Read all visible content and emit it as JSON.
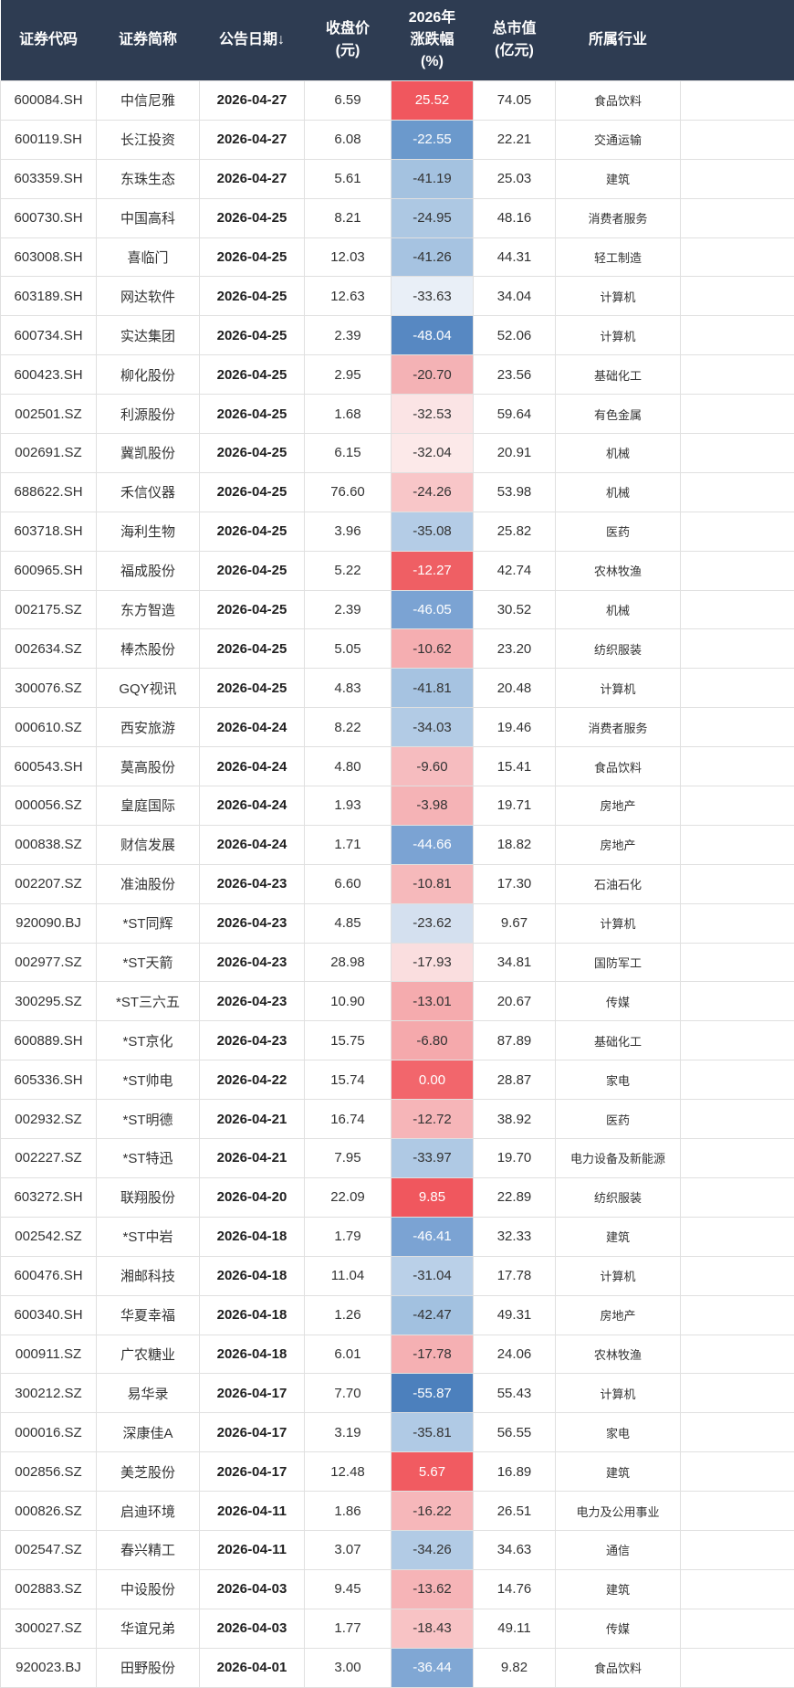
{
  "chart_data": {
    "type": "table",
    "sort": {
      "column": "date",
      "direction": "desc"
    },
    "colors": {
      "header_bg": "#2e3c52",
      "header_fg": "#ffffff",
      "grid": "#e0e0e0",
      "row_bg": "#ffffff",
      "text": "#333333",
      "positive_strong": "#f0575e",
      "negative_strong": "#4c80bd"
    },
    "columns": [
      {
        "key": "code",
        "label": "证券代码",
        "sortable": false
      },
      {
        "key": "name",
        "label": "证券简称",
        "sortable": false
      },
      {
        "key": "date",
        "label": "公告日期",
        "sortable": true,
        "sort_indicator": "↓"
      },
      {
        "key": "close",
        "label": "收盘价\n(元)",
        "sortable": false
      },
      {
        "key": "change",
        "label": "2026年\n涨跌幅\n(%)",
        "sortable": false
      },
      {
        "key": "mcap",
        "label": "总市值\n(亿元)",
        "sortable": false
      },
      {
        "key": "industry",
        "label": "所属行业",
        "sortable": false
      },
      {
        "key": "filler",
        "label": "",
        "sortable": false
      }
    ],
    "rows": [
      {
        "code": "600084.SH",
        "name": "中信尼雅",
        "date": "2026-04-27",
        "close": "6.59",
        "change": "25.52",
        "mcap": "74.05",
        "industry": "食品饮料",
        "change_bg": "#f0575e"
      },
      {
        "code": "600119.SH",
        "name": "长江投资",
        "date": "2026-04-27",
        "close": "6.08",
        "change": "-22.55",
        "mcap": "22.21",
        "industry": "交通运输",
        "change_bg": "#6b99cc"
      },
      {
        "code": "603359.SH",
        "name": "东珠生态",
        "date": "2026-04-27",
        "close": "5.61",
        "change": "-41.19",
        "mcap": "25.03",
        "industry": "建筑",
        "change_bg": "#a4c2e0"
      },
      {
        "code": "600730.SH",
        "name": "中国高科",
        "date": "2026-04-25",
        "close": "8.21",
        "change": "-24.95",
        "mcap": "48.16",
        "industry": "消费者服务",
        "change_bg": "#adc8e3"
      },
      {
        "code": "603008.SH",
        "name": "喜临门",
        "date": "2026-04-25",
        "close": "12.03",
        "change": "-41.26",
        "mcap": "44.31",
        "industry": "轻工制造",
        "change_bg": "#a6c3e1"
      },
      {
        "code": "603189.SH",
        "name": "网达软件",
        "date": "2026-04-25",
        "close": "12.63",
        "change": "-33.63",
        "mcap": "34.04",
        "industry": "计算机",
        "change_bg": "#e9eff7"
      },
      {
        "code": "600734.SH",
        "name": "实达集团",
        "date": "2026-04-25",
        "close": "2.39",
        "change": "-48.04",
        "mcap": "52.06",
        "industry": "计算机",
        "change_bg": "#5788c2"
      },
      {
        "code": "600423.SH",
        "name": "柳化股份",
        "date": "2026-04-25",
        "close": "2.95",
        "change": "-20.70",
        "mcap": "23.56",
        "industry": "基础化工",
        "change_bg": "#f4b2b5"
      },
      {
        "code": "002501.SZ",
        "name": "利源股份",
        "date": "2026-04-25",
        "close": "1.68",
        "change": "-32.53",
        "mcap": "59.64",
        "industry": "有色金属",
        "change_bg": "#fbe4e5"
      },
      {
        "code": "002691.SZ",
        "name": "冀凯股份",
        "date": "2026-04-25",
        "close": "6.15",
        "change": "-32.04",
        "mcap": "20.91",
        "industry": "机械",
        "change_bg": "#fce9e9"
      },
      {
        "code": "688622.SH",
        "name": "禾信仪器",
        "date": "2026-04-25",
        "close": "76.60",
        "change": "-24.26",
        "mcap": "53.98",
        "industry": "机械",
        "change_bg": "#f8c6c8"
      },
      {
        "code": "603718.SH",
        "name": "海利生物",
        "date": "2026-04-25",
        "close": "3.96",
        "change": "-35.08",
        "mcap": "25.82",
        "industry": "医药",
        "change_bg": "#b4cce6"
      },
      {
        "code": "600965.SH",
        "name": "福成股份",
        "date": "2026-04-25",
        "close": "5.22",
        "change": "-12.27",
        "mcap": "42.74",
        "industry": "农林牧渔",
        "change_bg": "#ef5f64"
      },
      {
        "code": "002175.SZ",
        "name": "东方智造",
        "date": "2026-04-25",
        "close": "2.39",
        "change": "-46.05",
        "mcap": "30.52",
        "industry": "机械",
        "change_bg": "#7ba3d3"
      },
      {
        "code": "002634.SZ",
        "name": "棒杰股份",
        "date": "2026-04-25",
        "close": "5.05",
        "change": "-10.62",
        "mcap": "23.20",
        "industry": "纺织服装",
        "change_bg": "#f5aeb1"
      },
      {
        "code": "300076.SZ",
        "name": "GQY视讯",
        "date": "2026-04-25",
        "close": "4.83",
        "change": "-41.81",
        "mcap": "20.48",
        "industry": "计算机",
        "change_bg": "#a6c3e1"
      },
      {
        "code": "000610.SZ",
        "name": "西安旅游",
        "date": "2026-04-24",
        "close": "8.22",
        "change": "-34.03",
        "mcap": "19.46",
        "industry": "消费者服务",
        "change_bg": "#b2cbe5"
      },
      {
        "code": "600543.SH",
        "name": "莫高股份",
        "date": "2026-04-24",
        "close": "4.80",
        "change": "-9.60",
        "mcap": "15.41",
        "industry": "食品饮料",
        "change_bg": "#f6bcbf"
      },
      {
        "code": "000056.SZ",
        "name": "皇庭国际",
        "date": "2026-04-24",
        "close": "1.93",
        "change": "-3.98",
        "mcap": "19.71",
        "industry": "房地产",
        "change_bg": "#f5b3b6"
      },
      {
        "code": "000838.SZ",
        "name": "财信发展",
        "date": "2026-04-24",
        "close": "1.71",
        "change": "-44.66",
        "mcap": "18.82",
        "industry": "房地产",
        "change_bg": "#7ba3d3"
      },
      {
        "code": "002207.SZ",
        "name": "准油股份",
        "date": "2026-04-23",
        "close": "6.60",
        "change": "-10.81",
        "mcap": "17.30",
        "industry": "石油石化",
        "change_bg": "#f6b9bb"
      },
      {
        "code": "920090.BJ",
        "name": "*ST同辉",
        "date": "2026-04-23",
        "close": "4.85",
        "change": "-23.62",
        "mcap": "9.67",
        "industry": "计算机",
        "change_bg": "#d4e0ef"
      },
      {
        "code": "002977.SZ",
        "name": "*ST天箭",
        "date": "2026-04-23",
        "close": "28.98",
        "change": "-17.93",
        "mcap": "34.81",
        "industry": "国防军工",
        "change_bg": "#fadedf"
      },
      {
        "code": "300295.SZ",
        "name": "*ST三六五",
        "date": "2026-04-23",
        "close": "10.90",
        "change": "-13.01",
        "mcap": "20.67",
        "industry": "传媒",
        "change_bg": "#f5abae"
      },
      {
        "code": "600889.SH",
        "name": "*ST京化",
        "date": "2026-04-23",
        "close": "15.75",
        "change": "-6.80",
        "mcap": "87.89",
        "industry": "基础化工",
        "change_bg": "#f5a9ac"
      },
      {
        "code": "605336.SH",
        "name": "*ST帅电",
        "date": "2026-04-22",
        "close": "15.74",
        "change": "0.00",
        "mcap": "28.87",
        "industry": "家电",
        "change_bg": "#f2666c"
      },
      {
        "code": "002932.SZ",
        "name": "*ST明德",
        "date": "2026-04-21",
        "close": "16.74",
        "change": "-12.72",
        "mcap": "38.92",
        "industry": "医药",
        "change_bg": "#f6b5b8"
      },
      {
        "code": "002227.SZ",
        "name": "*ST特迅",
        "date": "2026-04-21",
        "close": "7.95",
        "change": "-33.97",
        "mcap": "19.70",
        "industry": "电力设备及新能源",
        "change_bg": "#afc9e4"
      },
      {
        "code": "603272.SH",
        "name": "联翔股份",
        "date": "2026-04-20",
        "close": "22.09",
        "change": "9.85",
        "mcap": "22.89",
        "industry": "纺织服装",
        "change_bg": "#f0575e"
      },
      {
        "code": "002542.SZ",
        "name": "*ST中岩",
        "date": "2026-04-18",
        "close": "1.79",
        "change": "-46.41",
        "mcap": "32.33",
        "industry": "建筑",
        "change_bg": "#7ba3d3"
      },
      {
        "code": "600476.SH",
        "name": "湘邮科技",
        "date": "2026-04-18",
        "close": "11.04",
        "change": "-31.04",
        "mcap": "17.78",
        "industry": "计算机",
        "change_bg": "#bad0e8"
      },
      {
        "code": "600340.SH",
        "name": "华夏幸福",
        "date": "2026-04-18",
        "close": "1.26",
        "change": "-42.47",
        "mcap": "49.31",
        "industry": "房地产",
        "change_bg": "#a2c1e0"
      },
      {
        "code": "000911.SZ",
        "name": "广农糖业",
        "date": "2026-04-18",
        "close": "6.01",
        "change": "-17.78",
        "mcap": "24.06",
        "industry": "农林牧渔",
        "change_bg": "#f5b0b3"
      },
      {
        "code": "300212.SZ",
        "name": "易华录",
        "date": "2026-04-17",
        "close": "7.70",
        "change": "-55.87",
        "mcap": "55.43",
        "industry": "计算机",
        "change_bg": "#4c80bd"
      },
      {
        "code": "000016.SZ",
        "name": "深康佳A",
        "date": "2026-04-17",
        "close": "3.19",
        "change": "-35.81",
        "mcap": "56.55",
        "industry": "家电",
        "change_bg": "#b0cae5"
      },
      {
        "code": "002856.SZ",
        "name": "美芝股份",
        "date": "2026-04-17",
        "close": "12.48",
        "change": "5.67",
        "mcap": "16.89",
        "industry": "建筑",
        "change_bg": "#f15b61"
      },
      {
        "code": "000826.SZ",
        "name": "启迪环境",
        "date": "2026-04-11",
        "close": "1.86",
        "change": "-16.22",
        "mcap": "26.51",
        "industry": "电力及公用事业",
        "change_bg": "#f6b7ba"
      },
      {
        "code": "002547.SZ",
        "name": "春兴精工",
        "date": "2026-04-11",
        "close": "3.07",
        "change": "-34.26",
        "mcap": "34.63",
        "industry": "通信",
        "change_bg": "#b2cbe5"
      },
      {
        "code": "002883.SZ",
        "name": "中设股份",
        "date": "2026-04-03",
        "close": "9.45",
        "change": "-13.62",
        "mcap": "14.76",
        "industry": "建筑",
        "change_bg": "#f6b4b7"
      },
      {
        "code": "300027.SZ",
        "name": "华谊兄弟",
        "date": "2026-04-03",
        "close": "1.77",
        "change": "-18.43",
        "mcap": "49.11",
        "industry": "传媒",
        "change_bg": "#f8c3c5"
      },
      {
        "code": "920023.BJ",
        "name": "田野股份",
        "date": "2026-04-01",
        "close": "3.00",
        "change": "-36.44",
        "mcap": "9.82",
        "industry": "食品饮料",
        "change_bg": "#80a7d4"
      }
    ]
  }
}
